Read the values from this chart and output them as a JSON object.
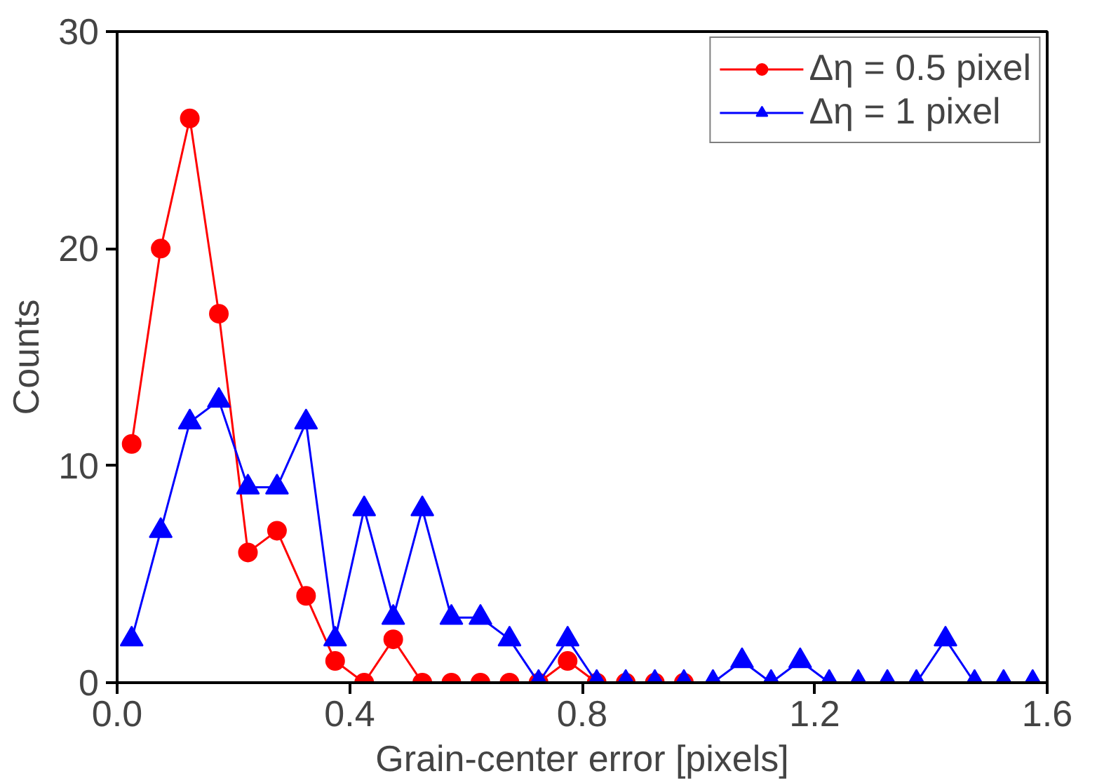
{
  "chart_data": {
    "type": "line",
    "xlabel": "Grain-center error [pixels]",
    "ylabel": "Counts",
    "xlim": [
      0,
      1.6
    ],
    "xticks": [
      {
        "value": 0,
        "label": "0.0"
      },
      0.4,
      0.8,
      1.2,
      1.6
    ],
    "ylim": [
      0,
      30
    ],
    "yticks": [
      0,
      10,
      20,
      30
    ],
    "grid": false,
    "legend": "top right",
    "series": [
      {
        "name": "Δη = 0.5 pixel",
        "color": "#ff0000",
        "marker": "circle",
        "x": [
          0.025,
          0.075,
          0.125,
          0.175,
          0.225,
          0.275,
          0.325,
          0.375,
          0.425,
          0.475,
          0.525,
          0.575,
          0.625,
          0.675,
          0.725,
          0.775,
          0.825,
          0.875,
          0.925,
          0.975
        ],
        "values": [
          11,
          20,
          26,
          17,
          6,
          7,
          4,
          1,
          0,
          2,
          0,
          0,
          0,
          0,
          0,
          1,
          0,
          0,
          0,
          0
        ]
      },
      {
        "name": "Δη = 1 pixel",
        "color": "#0000ff",
        "marker": "triangle",
        "x": [
          0.025,
          0.075,
          0.125,
          0.175,
          0.225,
          0.275,
          0.325,
          0.375,
          0.425,
          0.475,
          0.525,
          0.575,
          0.625,
          0.675,
          0.725,
          0.775,
          0.825,
          0.875,
          0.925,
          0.975,
          1.025,
          1.075,
          1.125,
          1.175,
          1.225,
          1.275,
          1.325,
          1.375,
          1.425,
          1.475,
          1.525,
          1.575
        ],
        "values": [
          2,
          7,
          12,
          13,
          9,
          9,
          12,
          2,
          8,
          3,
          8,
          3,
          3,
          2,
          0,
          2,
          0,
          0,
          0,
          0,
          0,
          1,
          0,
          1,
          0,
          0,
          0,
          0,
          2,
          0,
          0,
          0
        ]
      }
    ]
  }
}
